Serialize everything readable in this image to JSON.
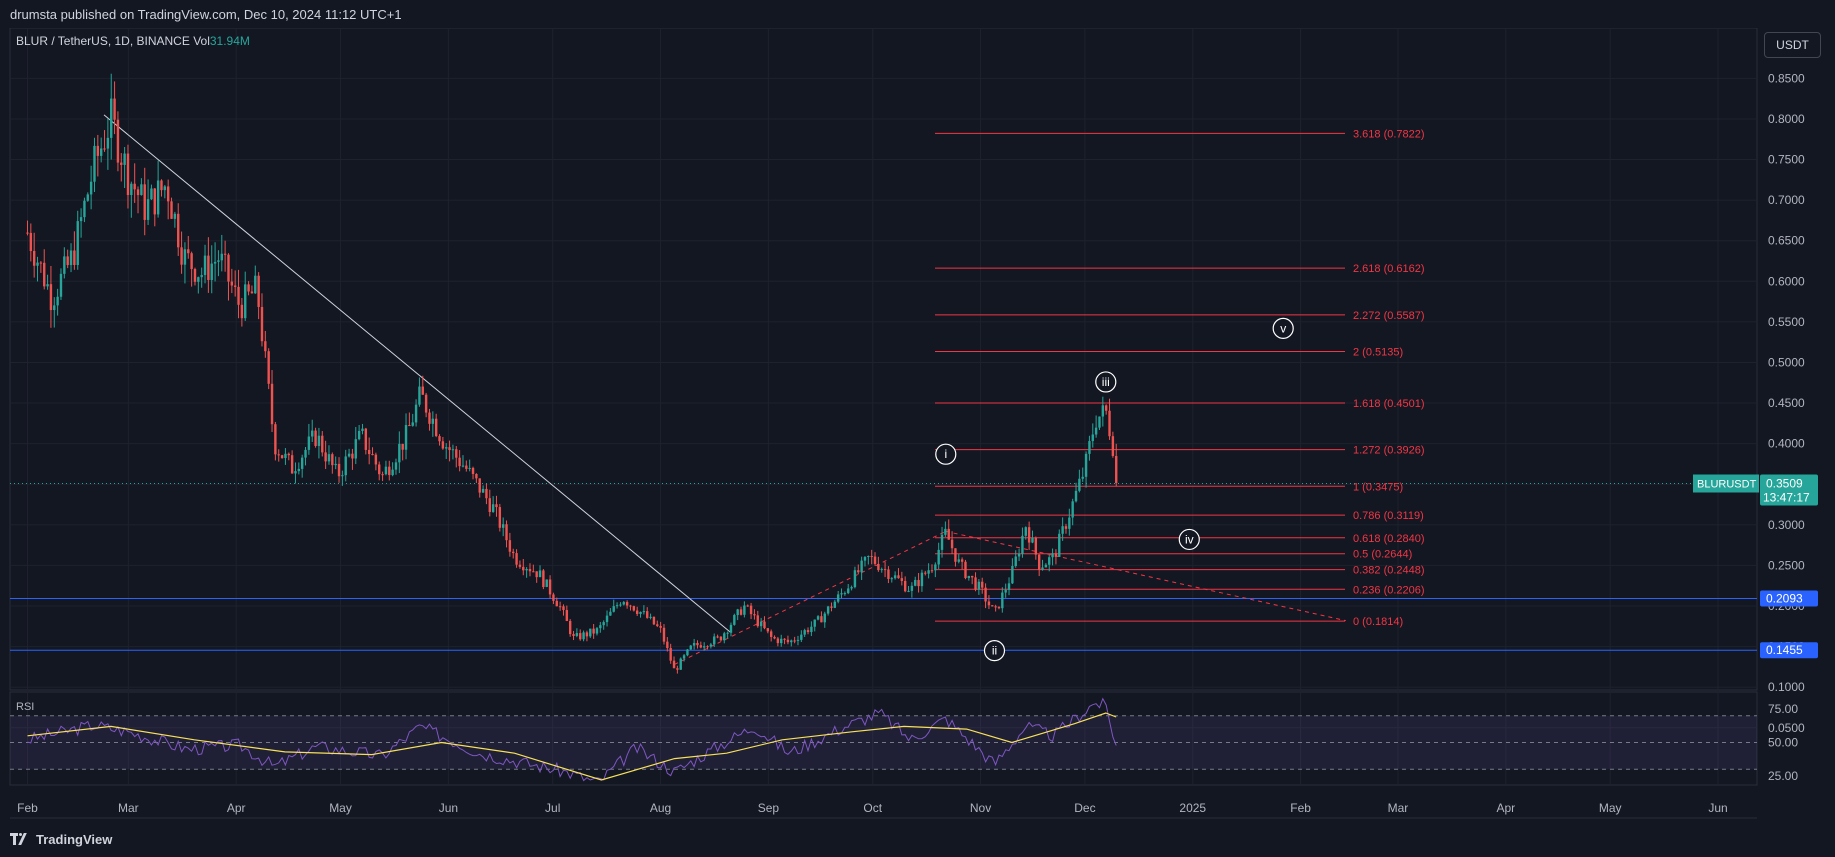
{
  "header": {
    "publish_line": "drumsta published on TradingView.com, Dec 10, 2024 11:12 UTC+1"
  },
  "legend": {
    "symbol": "BLUR / TetherUS, 1D, BINANCE",
    "vol_label": "Vol",
    "vol_value": "31.94M"
  },
  "currency_button": "USDT",
  "footer": {
    "brand": "TradingView"
  },
  "rsi_label": "RSI",
  "colors": {
    "background": "#131722",
    "up": "#26a69a",
    "down": "#ef5350",
    "fib": "#f23645",
    "support": "#2962ff",
    "rsi": "#7e57c2",
    "rsi_ma": "#f7e05a",
    "trendline": "#d1d4dc"
  },
  "chart_data": {
    "type": "candlestick",
    "symbol": "BLURUSDT",
    "timeframe": "1D",
    "exchange": "BINANCE",
    "y_axis": {
      "ticks": [
        "0.8500",
        "0.8000",
        "0.7500",
        "0.7000",
        "0.6500",
        "0.6000",
        "0.5500",
        "0.5000",
        "0.4500",
        "0.4000",
        "0.3500",
        "0.3000",
        "0.2500",
        "0.2000",
        "0.1500",
        "0.1000",
        "0.0500"
      ],
      "ylim": [
        0.03,
        0.88
      ]
    },
    "x_axis": {
      "ticks": [
        "Feb",
        "Mar",
        "Apr",
        "May",
        "Jun",
        "Jul",
        "Aug",
        "Sep",
        "Oct",
        "Nov",
        "Dec",
        "2025",
        "Feb",
        "Mar",
        "Apr",
        "May",
        "Jun"
      ]
    },
    "price_path": [
      [
        "2024-02-01",
        0.66
      ],
      [
        "2024-02-08",
        0.58
      ],
      [
        "2024-02-14",
        0.63
      ],
      [
        "2024-02-20",
        0.74
      ],
      [
        "2024-02-25",
        0.8
      ],
      [
        "2024-03-01",
        0.73
      ],
      [
        "2024-03-06",
        0.69
      ],
      [
        "2024-03-12",
        0.72
      ],
      [
        "2024-03-17",
        0.63
      ],
      [
        "2024-03-22",
        0.61
      ],
      [
        "2024-03-27",
        0.63
      ],
      [
        "2024-04-02",
        0.57
      ],
      [
        "2024-04-07",
        0.59
      ],
      [
        "2024-04-12",
        0.4
      ],
      [
        "2024-04-17",
        0.37
      ],
      [
        "2024-04-24",
        0.41
      ],
      [
        "2024-04-30",
        0.36
      ],
      [
        "2024-05-07",
        0.41
      ],
      [
        "2024-05-13",
        0.36
      ],
      [
        "2024-05-20",
        0.41
      ],
      [
        "2024-05-24",
        0.46
      ],
      [
        "2024-05-31",
        0.4
      ],
      [
        "2024-06-06",
        0.37
      ],
      [
        "2024-06-14",
        0.32
      ],
      [
        "2024-06-20",
        0.26
      ],
      [
        "2024-06-27",
        0.24
      ],
      [
        "2024-07-03",
        0.2
      ],
      [
        "2024-07-07",
        0.16
      ],
      [
        "2024-07-14",
        0.17
      ],
      [
        "2024-07-21",
        0.21
      ],
      [
        "2024-07-27",
        0.19
      ],
      [
        "2024-08-01",
        0.17
      ],
      [
        "2024-08-05",
        0.12
      ],
      [
        "2024-08-10",
        0.15
      ],
      [
        "2024-08-18",
        0.16
      ],
      [
        "2024-08-25",
        0.2
      ],
      [
        "2024-09-02",
        0.16
      ],
      [
        "2024-09-07",
        0.155
      ],
      [
        "2024-09-15",
        0.18
      ],
      [
        "2024-09-23",
        0.22
      ],
      [
        "2024-09-30",
        0.26
      ],
      [
        "2024-10-06",
        0.24
      ],
      [
        "2024-10-12",
        0.22
      ],
      [
        "2024-10-18",
        0.25
      ],
      [
        "2024-10-22",
        0.29
      ],
      [
        "2024-10-26",
        0.25
      ],
      [
        "2024-11-01",
        0.22
      ],
      [
        "2024-11-05",
        0.19
      ],
      [
        "2024-11-10",
        0.24
      ],
      [
        "2024-11-14",
        0.3
      ],
      [
        "2024-11-18",
        0.25
      ],
      [
        "2024-11-22",
        0.26
      ],
      [
        "2024-11-27",
        0.32
      ],
      [
        "2024-12-01",
        0.37
      ],
      [
        "2024-12-04",
        0.43
      ],
      [
        "2024-12-07",
        0.44
      ],
      [
        "2024-12-09",
        0.4
      ],
      [
        "2024-12-10",
        0.3509
      ]
    ],
    "last_price": {
      "label": "BLURUSDT",
      "value": "0.3509",
      "countdown": "13:47:17",
      "y": 0.3509
    },
    "support_lines": [
      {
        "value": "0.2093",
        "y": 0.2093
      },
      {
        "value": "0.1455",
        "y": 0.1455
      }
    ],
    "fib_extension": [
      {
        "label": "3.618 (0.7822)",
        "y": 0.7822
      },
      {
        "label": "2.618 (0.6162)",
        "y": 0.6162
      },
      {
        "label": "2.272 (0.5587)",
        "y": 0.5587
      },
      {
        "label": "2 (0.5135)",
        "y": 0.5135
      },
      {
        "label": "1.618 (0.4501)",
        "y": 0.4501
      },
      {
        "label": "1.272 (0.3926)",
        "y": 0.3926
      },
      {
        "label": "1 (0.3475)",
        "y": 0.3475
      },
      {
        "label": "0.786 (0.3119)",
        "y": 0.3119
      },
      {
        "label": "0.618 (0.2840)",
        "y": 0.284
      },
      {
        "label": "0.5 (0.2644)",
        "y": 0.2644
      },
      {
        "label": "0.382 (0.2448)",
        "y": 0.2448
      },
      {
        "label": "0.236 (0.2206)",
        "y": 0.2206
      },
      {
        "label": "0 (0.1814)",
        "y": 0.1814
      }
    ],
    "wave_labels": [
      {
        "label": "i",
        "date": "2024-10-22",
        "y": 0.387
      },
      {
        "label": "ii",
        "date": "2024-11-05",
        "y": 0.145
      },
      {
        "label": "iii",
        "date": "2024-12-07",
        "y": 0.476
      },
      {
        "label": "iv",
        "date": "2024-12-31",
        "y": 0.282
      },
      {
        "label": "v",
        "date": "2025-01-27",
        "y": 0.542
      }
    ],
    "trendline": {
      "from": [
        "2024-02-23",
        0.805
      ],
      "to": [
        "2024-08-21",
        0.168
      ]
    },
    "channel_line": {
      "from": [
        "2024-08-05",
        0.128
      ],
      "to": [
        "2024-10-22",
        0.292
      ]
    },
    "channel_line_2": {
      "from": [
        "2024-10-22",
        0.292
      ],
      "to": [
        "2025-02-14",
        0.182
      ]
    },
    "rsi": {
      "ticks": [
        "75.00",
        "50.00",
        "25.00"
      ],
      "levels": [
        70,
        50,
        30
      ],
      "path": [
        [
          "2024-02-01",
          52
        ],
        [
          "2024-02-20",
          63
        ],
        [
          "2024-03-01",
          58
        ],
        [
          "2024-03-18",
          45
        ],
        [
          "2024-04-02",
          48
        ],
        [
          "2024-04-12",
          32
        ],
        [
          "2024-04-24",
          47
        ],
        [
          "2024-05-13",
          40
        ],
        [
          "2024-05-24",
          62
        ],
        [
          "2024-06-10",
          42
        ],
        [
          "2024-07-05",
          28
        ],
        [
          "2024-07-14",
          20
        ],
        [
          "2024-07-25",
          46
        ],
        [
          "2024-08-05",
          28
        ],
        [
          "2024-08-18",
          48
        ],
        [
          "2024-08-28",
          62
        ],
        [
          "2024-09-07",
          42
        ],
        [
          "2024-09-23",
          62
        ],
        [
          "2024-10-03",
          72
        ],
        [
          "2024-10-12",
          52
        ],
        [
          "2024-10-22",
          68
        ],
        [
          "2024-11-05",
          34
        ],
        [
          "2024-11-14",
          62
        ],
        [
          "2024-11-22",
          55
        ],
        [
          "2024-12-04",
          80
        ],
        [
          "2024-12-07",
          77
        ],
        [
          "2024-12-10",
          48
        ]
      ],
      "ma_path": [
        [
          "2024-02-01",
          55
        ],
        [
          "2024-02-25",
          62
        ],
        [
          "2024-03-20",
          52
        ],
        [
          "2024-04-15",
          43
        ],
        [
          "2024-05-10",
          41
        ],
        [
          "2024-05-30",
          50
        ],
        [
          "2024-06-20",
          42
        ],
        [
          "2024-07-15",
          22
        ],
        [
          "2024-08-05",
          38
        ],
        [
          "2024-08-20",
          42
        ],
        [
          "2024-09-05",
          52
        ],
        [
          "2024-09-25",
          58
        ],
        [
          "2024-10-10",
          62
        ],
        [
          "2024-10-28",
          60
        ],
        [
          "2024-11-10",
          50
        ],
        [
          "2024-11-28",
          64
        ],
        [
          "2024-12-07",
          72
        ],
        [
          "2024-12-10",
          69
        ]
      ]
    }
  }
}
